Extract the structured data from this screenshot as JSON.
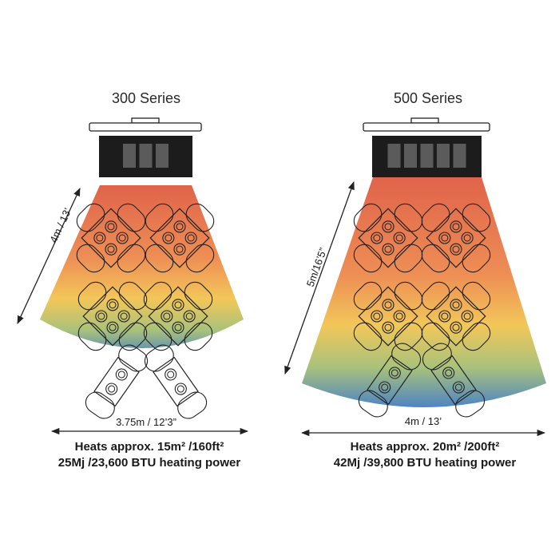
{
  "colors": {
    "heat_top": "#e0634a",
    "heat_mid_orange": "#ee8e55",
    "heat_yellow": "#f2c759",
    "heat_green": "#a9c27b",
    "heat_blue": "#4a82c7",
    "outline": "#222222",
    "heater_body": "#1c1c1c",
    "heater_panel": "#5b5b5b"
  },
  "series_300": {
    "title": "300 Series",
    "panel_count": 3,
    "reach_label": "4m / 13’",
    "width_label": "3.75m / 12’3”",
    "heats_text": "Heats approx. 15m²  /160ft²",
    "power_text": "25Mj /23,600 BTU heating power"
  },
  "series_500": {
    "title": "500 Series",
    "panel_count": 5,
    "reach_label": "5m/16’5”",
    "width_label": "4m / 13’",
    "heats_text": "Heats approx. 20m² /200ft²",
    "power_text": "42Mj /39,800 BTU heating power"
  }
}
